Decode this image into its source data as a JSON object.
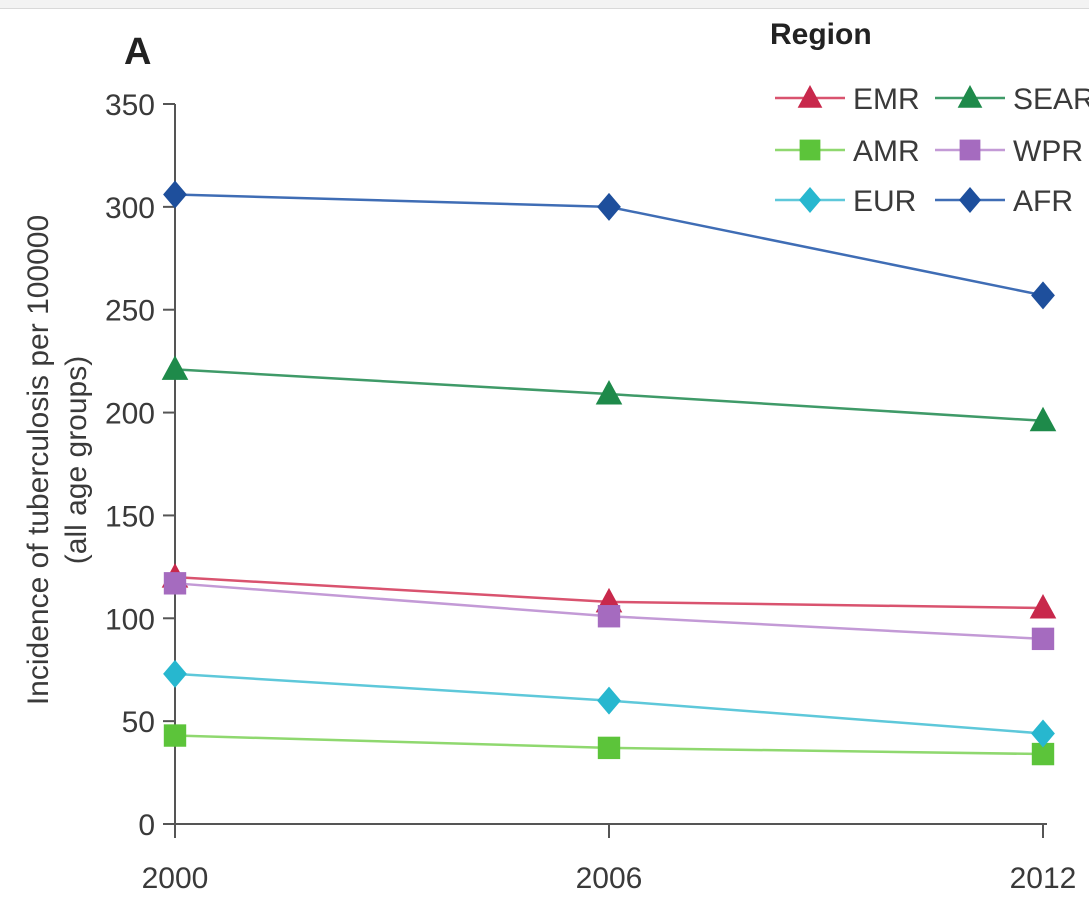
{
  "panel_label": "A",
  "legend_title": "Region",
  "chart_data": {
    "type": "line",
    "title": "",
    "xlabel": "",
    "ylabel": "Incidence of tuberculosis per 100000",
    "ylabel_line2": "(all age groups)",
    "x": [
      2000,
      2006,
      2012
    ],
    "x_tick_labels": [
      "2000",
      "2006",
      "2012"
    ],
    "ylim": [
      0,
      350
    ],
    "y_ticks": [
      0,
      50,
      100,
      150,
      200,
      250,
      300,
      350
    ],
    "y_tick_labels": [
      "0",
      "50",
      "100",
      "150",
      "200",
      "250",
      "300",
      "350"
    ],
    "grid": false,
    "legend_position": "top-right",
    "series": [
      {
        "name": "EMR",
        "marker": "triangle",
        "color": "#c8284b",
        "line_color": "#d9536f",
        "values": [
          120,
          108,
          105
        ]
      },
      {
        "name": "SEAR",
        "marker": "triangle",
        "color": "#1e8a4a",
        "line_color": "#3f9a68",
        "values": [
          221,
          209,
          196
        ]
      },
      {
        "name": "AMR",
        "marker": "square",
        "color": "#5cc43a",
        "line_color": "#8fd86f",
        "values": [
          43,
          37,
          34
        ]
      },
      {
        "name": "WPR",
        "marker": "square",
        "color": "#a56bbf",
        "line_color": "#c39ad6",
        "values": [
          117,
          101,
          90
        ]
      },
      {
        "name": "EUR",
        "marker": "diamond",
        "color": "#27b7cf",
        "line_color": "#5ec8da",
        "values": [
          73,
          60,
          44
        ]
      },
      {
        "name": "AFR",
        "marker": "diamond",
        "color": "#1e4f9c",
        "line_color": "#3f6db5",
        "values": [
          306,
          300,
          257
        ]
      }
    ]
  }
}
